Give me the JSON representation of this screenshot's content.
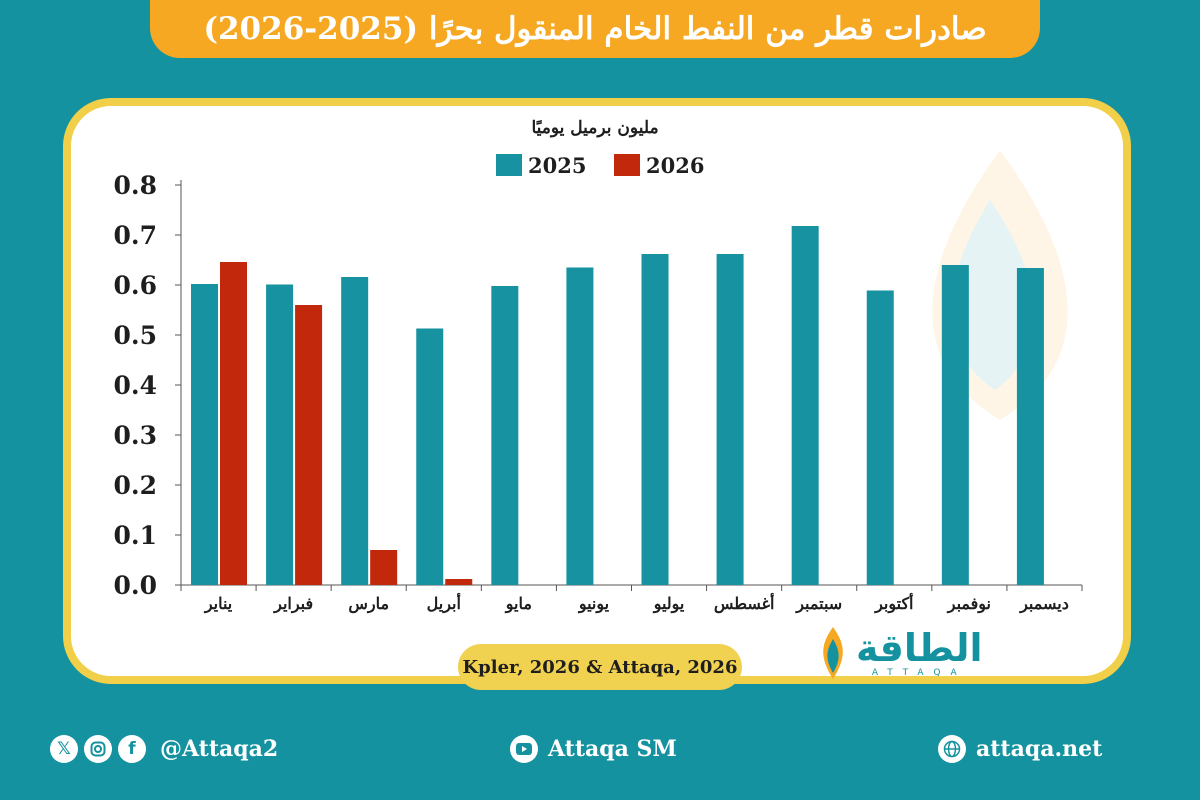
{
  "title": "صادرات قطر من النفط الخام المنقول بحرًا (2025-2026)",
  "chart_data": {
    "type": "bar",
    "unit_label": "مليون برميل يوميًا",
    "categories": [
      "يناير",
      "فبراير",
      "مارس",
      "أبريل",
      "مايو",
      "يونيو",
      "يوليو",
      "أغسطس",
      "سبتمبر",
      "أكتوبر",
      "نوفمبر",
      "ديسمبر"
    ],
    "series": [
      {
        "name": "2025",
        "color": "#1692a0",
        "values": [
          0.602,
          0.601,
          0.616,
          0.513,
          0.598,
          0.635,
          0.662,
          0.662,
          0.718,
          0.589,
          0.64,
          0.634
        ]
      },
      {
        "name": "2026",
        "color": "#c1280c",
        "values": [
          0.646,
          0.56,
          0.07,
          0.012,
          null,
          null,
          null,
          null,
          null,
          null,
          null,
          null
        ]
      }
    ],
    "ylim": [
      0,
      0.8
    ],
    "yticks": [
      "0.0",
      "0.1",
      "0.2",
      "0.3",
      "0.4",
      "0.5",
      "0.6",
      "0.7",
      "0.8"
    ],
    "legend_position": "top",
    "grid": false
  },
  "source": "Kpler, 2026 & Attaqa, 2026",
  "logo": {
    "arabic": "الطاقة",
    "latin": "ATTAQA"
  },
  "footer": {
    "social_handle": "@Attaqa2",
    "youtube": "Attaqa SM",
    "website": "attaqa.net",
    "icons": [
      "x-icon",
      "instagram-icon",
      "facebook-icon",
      "youtube-icon",
      "globe-icon"
    ]
  }
}
